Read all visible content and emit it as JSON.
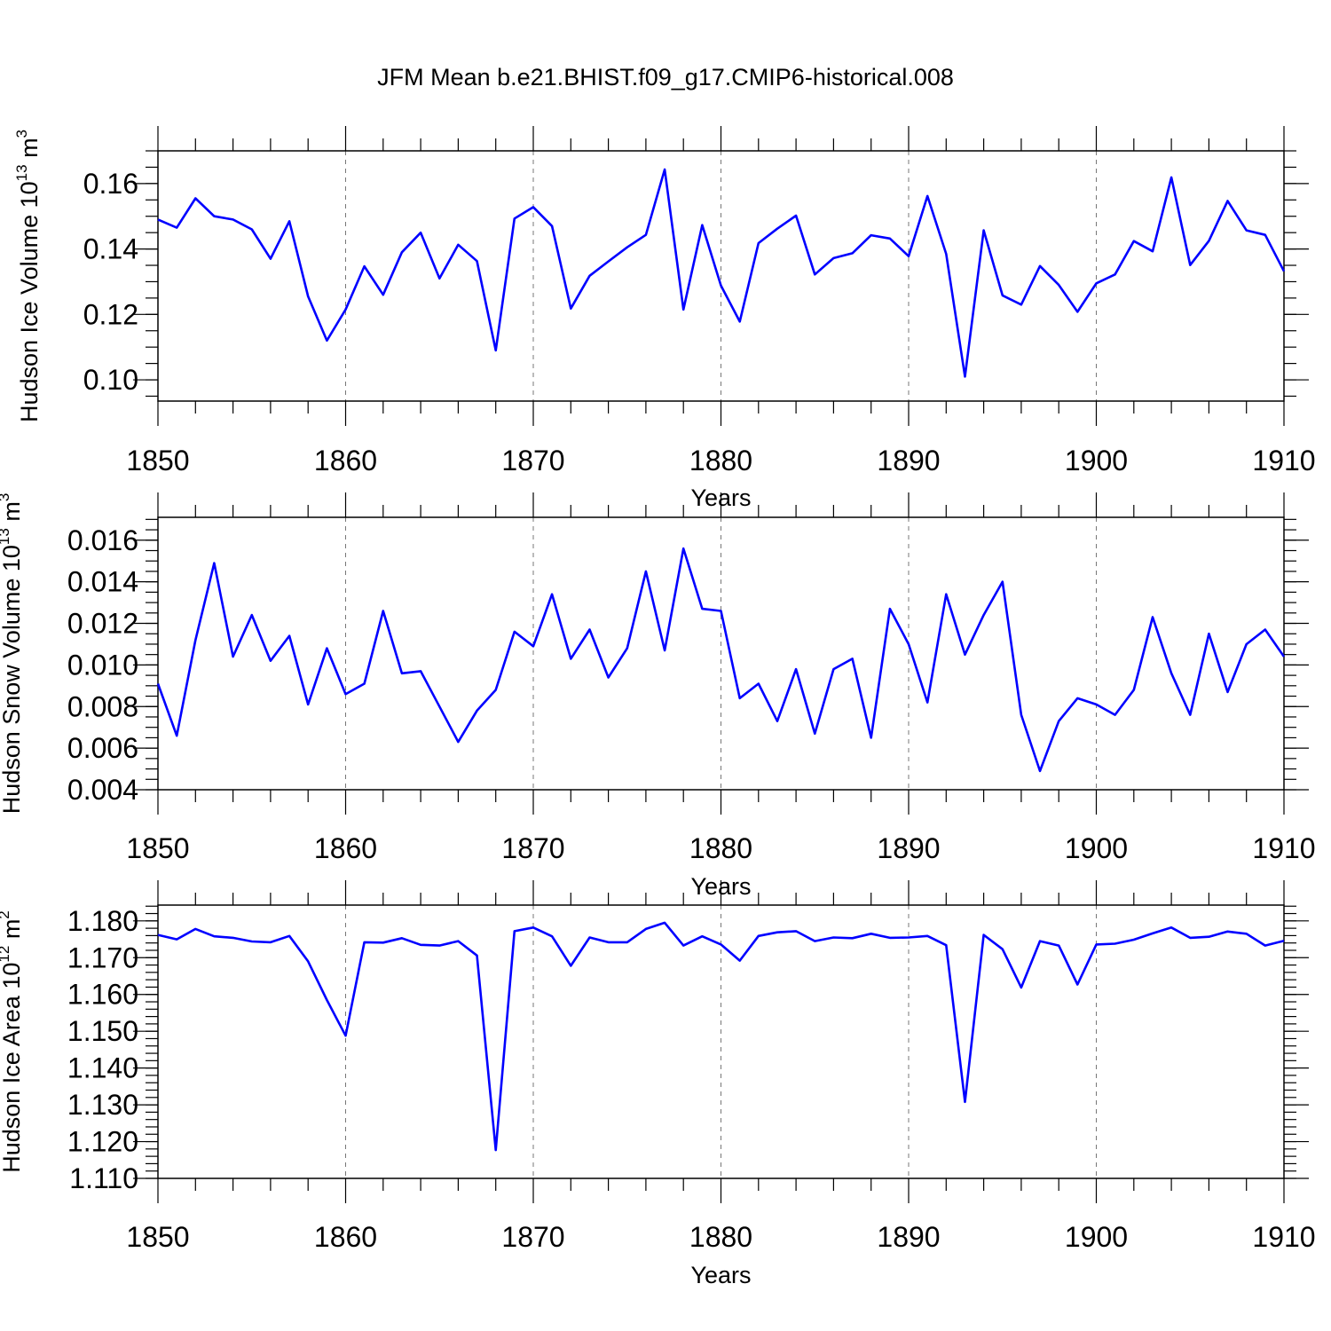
{
  "figure_title": "JFM Mean b.e21.BHIST.f09_g17.CMIP6-historical.008",
  "chart_data": [
    {
      "type": "line",
      "title": "JFM Mean b.e21.BHIST.f09_g17.CMIP6-historical.008",
      "xlabel": "Years",
      "ylabel_base": "Hudson Ice Volume 10",
      "ylabel_exp": "13",
      "ylabel_unit": " m",
      "ylabel_unit_exp": "3",
      "xlim": [
        1850,
        1910
      ],
      "ylim": [
        0.0935,
        0.17
      ],
      "xticks": [
        1850,
        1860,
        1870,
        1880,
        1890,
        1900,
        1910
      ],
      "xtick_labels": [
        "1850",
        "1860",
        "1870",
        "1880",
        "1890",
        "1900",
        "1910"
      ],
      "yticks": [
        0.1,
        0.12,
        0.14,
        0.16
      ],
      "ytick_labels": [
        "0.10",
        "0.12",
        "0.14",
        "0.16"
      ],
      "yminor_step": 0.005,
      "series": [
        {
          "name": "Hudson Ice Volume",
          "x_start": 1850,
          "values": [
            0.149,
            0.1465,
            0.1555,
            0.15,
            0.149,
            0.146,
            0.137,
            0.1485,
            0.1255,
            0.112,
            0.1215,
            0.1347,
            0.126,
            0.139,
            0.145,
            0.131,
            0.1413,
            0.1363,
            0.109,
            0.1493,
            0.1528,
            0.147,
            0.1218,
            0.1318,
            0.1362,
            0.1405,
            0.1443,
            0.1643,
            0.1215,
            0.1473,
            0.1288,
            0.1178,
            0.1418,
            0.1462,
            0.1502,
            0.1322,
            0.1372,
            0.1387,
            0.1442,
            0.1432,
            0.1378,
            0.1562,
            0.1385,
            0.101,
            0.1457,
            0.1258,
            0.123,
            0.1348,
            0.129,
            0.1208,
            0.1295,
            0.1322,
            0.1424,
            0.1393,
            0.1619,
            0.1351,
            0.1425,
            0.1547,
            0.1457,
            0.1443,
            0.1332
          ]
        }
      ]
    },
    {
      "type": "line",
      "xlabel": "Years",
      "ylabel_base": "Hudson Snow Volume 10",
      "ylabel_exp": "13",
      "ylabel_unit": " m",
      "ylabel_unit_exp": "3",
      "xlim": [
        1850,
        1910
      ],
      "ylim": [
        0.004,
        0.0171
      ],
      "xticks": [
        1850,
        1860,
        1870,
        1880,
        1890,
        1900,
        1910
      ],
      "xtick_labels": [
        "1850",
        "1860",
        "1870",
        "1880",
        "1890",
        "1900",
        "1910"
      ],
      "yticks": [
        0.004,
        0.006,
        0.008,
        0.01,
        0.012,
        0.014,
        0.016
      ],
      "ytick_labels": [
        "0.004",
        "0.006",
        "0.008",
        "0.010",
        "0.012",
        "0.014",
        "0.016"
      ],
      "yminor_step": 0.0005,
      "series": [
        {
          "name": "Hudson Snow Volume",
          "x_start": 1850,
          "values": [
            0.0091,
            0.0066,
            0.0112,
            0.0149,
            0.0104,
            0.0124,
            0.0102,
            0.0114,
            0.0081,
            0.0108,
            0.0086,
            0.0091,
            0.0126,
            0.0096,
            0.0097,
            0.008,
            0.0063,
            0.0078,
            0.0088,
            0.0116,
            0.0109,
            0.0134,
            0.0103,
            0.0117,
            0.0094,
            0.0108,
            0.0145,
            0.0107,
            0.0156,
            0.0127,
            0.0126,
            0.0084,
            0.0091,
            0.0073,
            0.0098,
            0.0067,
            0.0098,
            0.0103,
            0.0065,
            0.0127,
            0.011,
            0.0082,
            0.0134,
            0.0105,
            0.0124,
            0.014,
            0.0076,
            0.0049,
            0.0073,
            0.0084,
            0.0081,
            0.0076,
            0.0088,
            0.0123,
            0.0096,
            0.0076,
            0.0115,
            0.0087,
            0.011,
            0.0117,
            0.0104
          ]
        }
      ]
    },
    {
      "type": "line",
      "xlabel": "Years",
      "ylabel_base": "Hudson Ice Area 10",
      "ylabel_exp": "12",
      "ylabel_unit": " m",
      "ylabel_unit_exp": "2",
      "xlim": [
        1850,
        1910
      ],
      "ylim": [
        1.11,
        1.1843
      ],
      "xticks": [
        1850,
        1860,
        1870,
        1880,
        1890,
        1900,
        1910
      ],
      "xtick_labels": [
        "1850",
        "1860",
        "1870",
        "1880",
        "1890",
        "1900",
        "1910"
      ],
      "yticks": [
        1.11,
        1.12,
        1.13,
        1.14,
        1.15,
        1.16,
        1.17,
        1.18
      ],
      "ytick_labels": [
        "1.110",
        "1.120",
        "1.130",
        "1.140",
        "1.150",
        "1.160",
        "1.170",
        "1.180"
      ],
      "yminor_step": 0.002,
      "series": [
        {
          "name": "Hudson Ice Area",
          "x_start": 1850,
          "values": [
            1.1762,
            1.175,
            1.1778,
            1.1758,
            1.1754,
            1.1744,
            1.1742,
            1.1759,
            1.169,
            1.1585,
            1.1488,
            1.1742,
            1.1741,
            1.1753,
            1.1735,
            1.1733,
            1.1745,
            1.1706,
            1.1177,
            1.1772,
            1.1782,
            1.1758,
            1.1678,
            1.1755,
            1.1742,
            1.1742,
            1.1778,
            1.1795,
            1.1733,
            1.1758,
            1.1736,
            1.1692,
            1.1759,
            1.1769,
            1.1772,
            1.1745,
            1.1755,
            1.1753,
            1.1765,
            1.1754,
            1.1755,
            1.1759,
            1.1734,
            1.1308,
            1.1762,
            1.1723,
            1.1619,
            1.1745,
            1.1733,
            1.1627,
            1.1736,
            1.1738,
            1.1749,
            1.1766,
            1.1782,
            1.1754,
            1.1757,
            1.1771,
            1.1765,
            1.1733,
            1.1746
          ]
        }
      ]
    }
  ]
}
